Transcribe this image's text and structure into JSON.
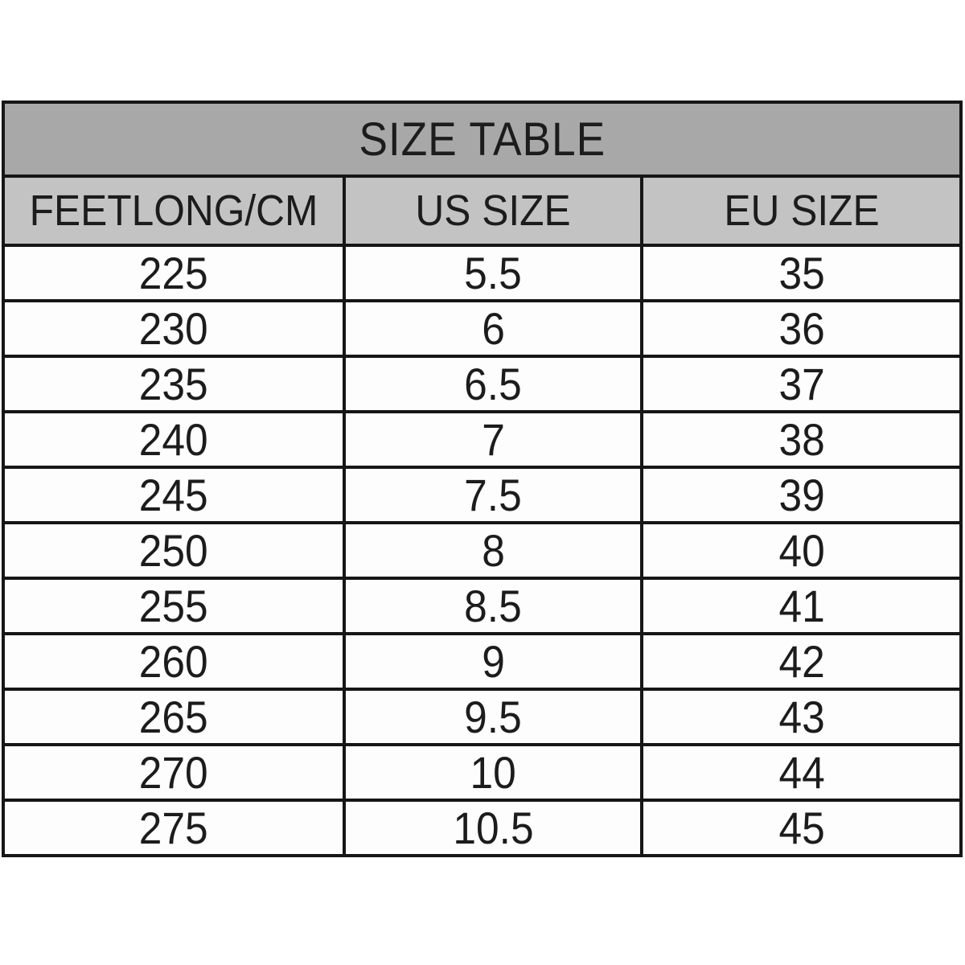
{
  "table": {
    "title": "SIZE TABLE",
    "columns": [
      "FEETLONG/CM",
      "US SIZE",
      "EU SIZE"
    ],
    "rows": [
      [
        "225",
        "5.5",
        "35"
      ],
      [
        "230",
        "6",
        "36"
      ],
      [
        "235",
        "6.5",
        "37"
      ],
      [
        "240",
        "7",
        "38"
      ],
      [
        "245",
        "7.5",
        "39"
      ],
      [
        "250",
        "8",
        "40"
      ],
      [
        "255",
        "8.5",
        "41"
      ],
      [
        "260",
        "9",
        "42"
      ],
      [
        "265",
        "9.5",
        "43"
      ],
      [
        "270",
        "10",
        "44"
      ],
      [
        "275",
        "10.5",
        "45"
      ]
    ]
  },
  "colors": {
    "title_background": "#a8a8a8",
    "header_background": "#c3c3c3",
    "row_background": "#fdfdfd",
    "border": "#161616",
    "text": "#1c1c1c",
    "page_background": "#ffffff"
  }
}
